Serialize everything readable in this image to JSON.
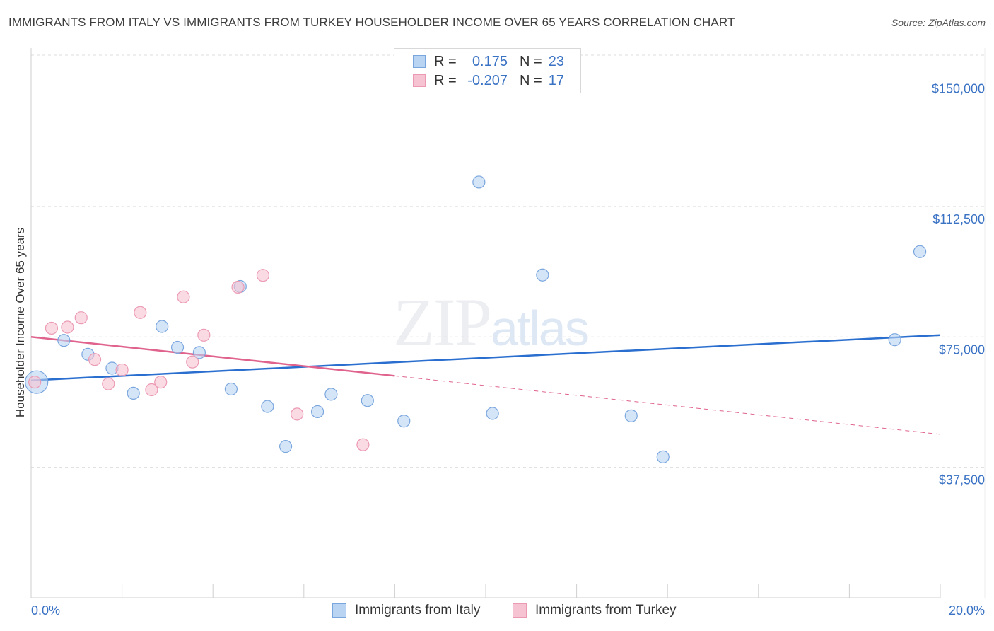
{
  "title": "IMMIGRANTS FROM ITALY VS IMMIGRANTS FROM TURKEY HOUSEHOLDER INCOME OVER 65 YEARS CORRELATION CHART",
  "source": "Source: ZipAtlas.com",
  "watermark": {
    "zip": "ZIP",
    "atlas": "atlas"
  },
  "legend": {
    "italy": {
      "r_label": "R =",
      "r_value": "0.175",
      "n_label": "N =",
      "n_value": "23"
    },
    "turkey": {
      "r_label": "R =",
      "r_value": "-0.207",
      "n_label": "N =",
      "n_value": "17"
    }
  },
  "bottom_legend": {
    "italy": "Immigrants from Italy",
    "turkey": "Immigrants from Turkey"
  },
  "colors": {
    "italy_fill": "#b9d3f3",
    "italy_stroke": "#7aa6de",
    "italy_line": "#2a6fcf",
    "turkey_fill": "#f6c3d2",
    "turkey_stroke": "#ec9ab4",
    "turkey_line": "#e0638d",
    "tick_text": "#3a72c4",
    "grid": "#dddddd"
  },
  "chart_data": {
    "type": "scatter",
    "title": "IMMIGRANTS FROM ITALY VS IMMIGRANTS FROM TURKEY HOUSEHOLDER INCOME OVER 65 YEARS CORRELATION CHART",
    "xlabel": "",
    "ylabel": "Householder Income Over 65 years",
    "xlim": [
      0,
      20
    ],
    "ylim": [
      0,
      156000
    ],
    "x_tick_labels": {
      "left": "0.0%",
      "right": "20.0%"
    },
    "y_ticks": [
      {
        "value": 37500,
        "label": "$37,500"
      },
      {
        "value": 75000,
        "label": "$75,000"
      },
      {
        "value": 112500,
        "label": "$112,500"
      },
      {
        "value": 150000,
        "label": "$150,000"
      }
    ],
    "series": [
      {
        "name": "Immigrants from Italy",
        "points": [
          {
            "x": 0.12,
            "y": 62000,
            "big": true
          },
          {
            "x": 0.72,
            "y": 74000
          },
          {
            "x": 1.25,
            "y": 70000
          },
          {
            "x": 1.78,
            "y": 66000
          },
          {
            "x": 2.25,
            "y": 58800
          },
          {
            "x": 2.88,
            "y": 78000
          },
          {
            "x": 3.22,
            "y": 72000
          },
          {
            "x": 3.7,
            "y": 70500
          },
          {
            "x": 4.4,
            "y": 60000
          },
          {
            "x": 4.6,
            "y": 89500
          },
          {
            "x": 5.2,
            "y": 55000
          },
          {
            "x": 5.6,
            "y": 43500
          },
          {
            "x": 6.3,
            "y": 53500
          },
          {
            "x": 6.6,
            "y": 58500
          },
          {
            "x": 7.4,
            "y": 56700
          },
          {
            "x": 8.2,
            "y": 50800
          },
          {
            "x": 9.85,
            "y": 119500
          },
          {
            "x": 10.15,
            "y": 53000
          },
          {
            "x": 11.25,
            "y": 92800
          },
          {
            "x": 13.2,
            "y": 52300
          },
          {
            "x": 13.9,
            "y": 40500
          },
          {
            "x": 19.0,
            "y": 74200
          },
          {
            "x": 19.55,
            "y": 99500
          }
        ],
        "trend": {
          "x": [
            0,
            20
          ],
          "y": [
            62500,
            75500
          ],
          "dashed_from": null
        }
      },
      {
        "name": "Immigrants from Turkey",
        "points": [
          {
            "x": 0.08,
            "y": 62000
          },
          {
            "x": 0.45,
            "y": 77500
          },
          {
            "x": 0.8,
            "y": 77800
          },
          {
            "x": 1.1,
            "y": 80500
          },
          {
            "x": 1.4,
            "y": 68500
          },
          {
            "x": 1.7,
            "y": 61500
          },
          {
            "x": 2.0,
            "y": 65500
          },
          {
            "x": 2.4,
            "y": 82000
          },
          {
            "x": 2.65,
            "y": 59800
          },
          {
            "x": 2.85,
            "y": 62000
          },
          {
            "x": 3.35,
            "y": 86500
          },
          {
            "x": 3.55,
            "y": 67800
          },
          {
            "x": 3.8,
            "y": 75500
          },
          {
            "x": 4.55,
            "y": 89300
          },
          {
            "x": 5.1,
            "y": 92700
          },
          {
            "x": 5.85,
            "y": 52800
          },
          {
            "x": 7.3,
            "y": 44000
          }
        ],
        "trend": {
          "x": [
            0,
            20
          ],
          "y": [
            75000,
            47000
          ],
          "solid_until_x": 8.0
        }
      }
    ]
  }
}
